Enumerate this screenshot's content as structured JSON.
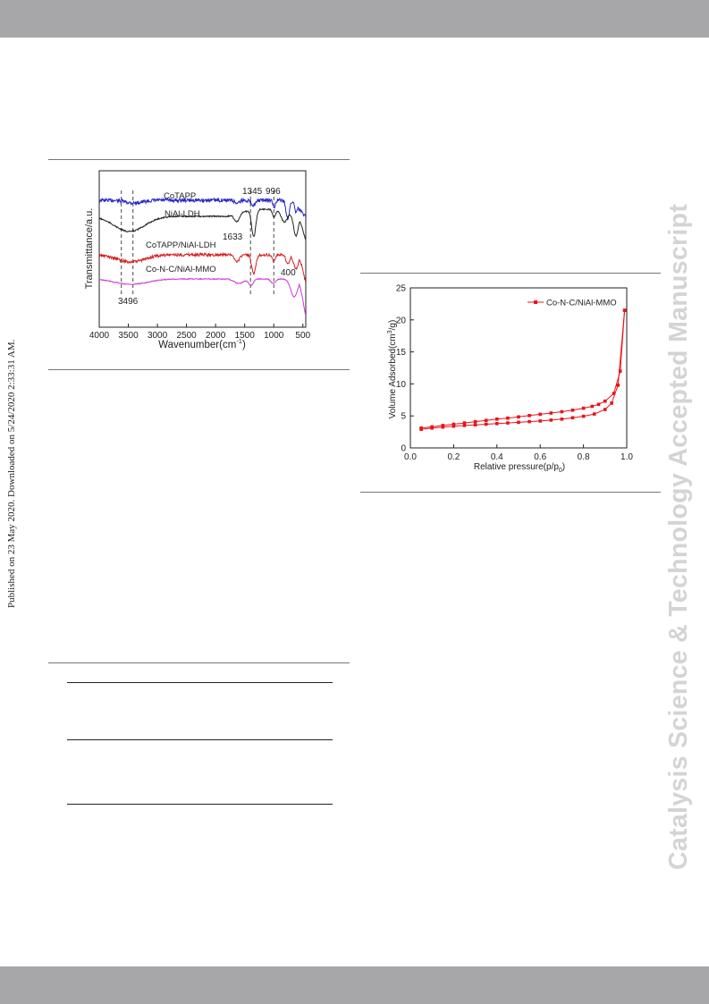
{
  "watermark": "Catalysis Science & Technology Accepted Manuscript",
  "side_note": "Published on 23 May 2020. Downloaded on 5/24/2020 2:33:31 AM.",
  "chart_data": [
    {
      "type": "line",
      "xlabel": "Wavenumber(cm",
      "xlabel_sup": "-1",
      "xlabel_end": ")",
      "ylabel": "Transmittance/a.u.",
      "xlim": [
        4000,
        450
      ],
      "x_ticks": [
        "4000",
        "3500",
        "3000",
        "2500",
        "2000",
        "1500",
        "1000",
        "500"
      ],
      "x_tick_values": [
        4000,
        3500,
        3000,
        2500,
        2000,
        1500,
        1000,
        500
      ],
      "series": [
        {
          "name": "CoTAPP",
          "color": "#2626c8"
        },
        {
          "name": "NiAl-LDH",
          "color": "#222222"
        },
        {
          "name": "CoTAPP/NiAl-LDH",
          "color": "#d42020"
        },
        {
          "name": "Co-N-C/NiAl-MMO",
          "color": "#cf33dd"
        }
      ],
      "annotations": [
        "1345",
        "996",
        "1633",
        "400",
        "3496"
      ],
      "dashed_lines": [
        3620,
        3420,
        1400,
        1000
      ]
    },
    {
      "type": "line",
      "xlabel": "Relative pressure(p/p",
      "xlabel_sub": "0",
      "xlabel_end": ")",
      "ylabel": "Volume Adsorbed(cm",
      "ylabel_sup": "3",
      "ylabel_end": "/g)",
      "xlim": [
        0.0,
        1.0
      ],
      "ylim": [
        0,
        25
      ],
      "x_ticks": [
        "0.0",
        "0.2",
        "0.4",
        "0.6",
        "0.8",
        "1.0"
      ],
      "y_ticks": [
        "0",
        "5",
        "10",
        "15",
        "20",
        "25"
      ],
      "legend": "top-right",
      "series": [
        {
          "name": "Co-N-C/NiAl-MMO",
          "color": "#e8141b",
          "adsorption": {
            "x": [
              0.05,
              0.1,
              0.15,
              0.2,
              0.25,
              0.3,
              0.35,
              0.4,
              0.45,
              0.5,
              0.55,
              0.6,
              0.65,
              0.7,
              0.75,
              0.8,
              0.85,
              0.9,
              0.93,
              0.96,
              0.99
            ],
            "y": [
              2.9,
              3.1,
              3.25,
              3.4,
              3.5,
              3.6,
              3.7,
              3.8,
              3.9,
              4.0,
              4.1,
              4.2,
              4.35,
              4.5,
              4.7,
              4.95,
              5.3,
              6.0,
              7.0,
              9.8,
              21.5
            ]
          },
          "desorption": {
            "x": [
              0.99,
              0.97,
              0.94,
              0.9,
              0.87,
              0.84,
              0.8,
              0.75,
              0.7,
              0.65,
              0.6,
              0.55,
              0.5,
              0.45,
              0.4,
              0.35,
              0.3,
              0.25,
              0.2,
              0.15,
              0.1,
              0.05
            ],
            "y": [
              21.5,
              12.0,
              8.5,
              7.3,
              6.8,
              6.5,
              6.2,
              5.9,
              5.65,
              5.45,
              5.25,
              5.05,
              4.85,
              4.65,
              4.5,
              4.3,
              4.1,
              3.9,
              3.7,
              3.5,
              3.3,
              3.1
            ]
          }
        }
      ]
    }
  ]
}
